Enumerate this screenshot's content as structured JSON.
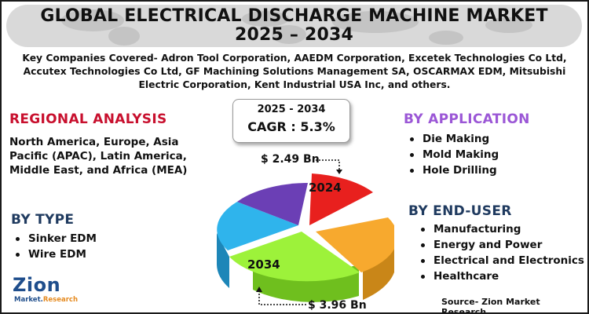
{
  "title_line1": "GLOBAL ELECTRICAL DISCHARGE MACHINE MARKET",
  "title_line2": "2025 – 2034",
  "companies": "Key Companies Covered- Adron Tool Corporation, AAEDM Corporation, Excetek Technologies Co Ltd, Accutex Technologies Co Ltd, GF Machining Solutions Management SA, OSCARMAX EDM, Mitsubishi Electric Corporation, Kent Industrial USA Inc, and others.",
  "cagr": {
    "period": "2025 - 2034",
    "value": "CAGR : 5.3%"
  },
  "regional": {
    "heading": "REGIONAL ANALYSIS",
    "text": "North America, Europe, Asia Pacific (APAC), Latin America, Middle East, and Africa (MEA)"
  },
  "by_type": {
    "heading": "BY TYPE",
    "items": [
      "Sinker EDM",
      "Wire EDM"
    ]
  },
  "by_application": {
    "heading": "BY APPLICATION",
    "items": [
      "Die Making",
      "Mold Making",
      "Hole Drilling"
    ]
  },
  "by_end_user": {
    "heading": "BY END-USER",
    "items": [
      "Manufacturing",
      "Energy and Power",
      "Electrical and Electronics",
      "Healthcare"
    ]
  },
  "pie": {
    "value_2024": "$ 2.49 Bn",
    "value_2034": "$ 3.96 Bn",
    "label_2024": "2024",
    "label_2034": "2034",
    "slice_colors": [
      "#e8201e",
      "#f7a92e",
      "#9df23a",
      "#2fb4ec",
      "#6b3fb5"
    ]
  },
  "source": "Source- Zion Market Research",
  "logo": {
    "brand": "Zion",
    "sub_market": "Market.",
    "sub_research": "Research"
  },
  "colors": {
    "red_heading": "#c8102e",
    "blue_heading": "#1f3a5f",
    "purple_heading": "#9b57d6",
    "title_bg": "#d9d9d9"
  }
}
